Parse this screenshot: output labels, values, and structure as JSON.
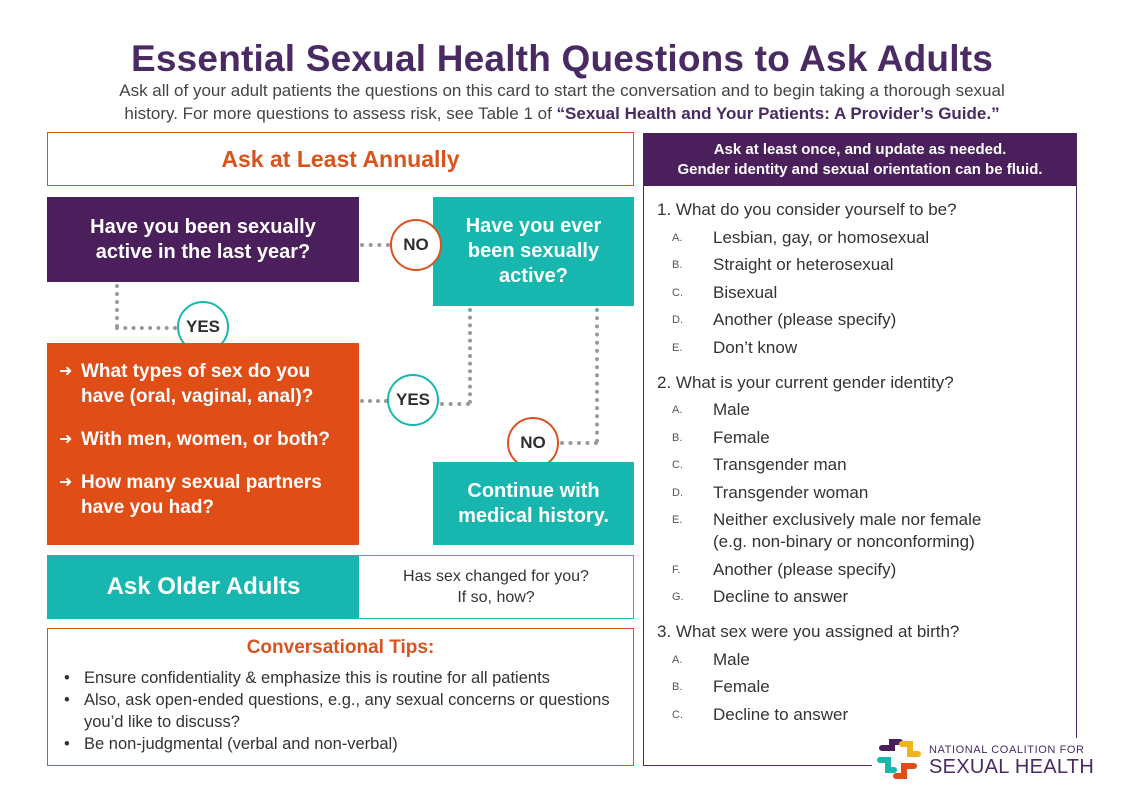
{
  "title": "Essential Sexual Health Questions to Ask Adults",
  "intro": {
    "line1": "Ask all of your adult patients the questions on this card to start the conversation and to begin taking a thorough sexual",
    "line2_prefix": "history. For more questions to assess risk, see Table 1 of ",
    "guide": "“Sexual Health and Your Patients: A Provider’s Guide.”"
  },
  "annual": {
    "header": "Ask at Least Annually",
    "q_active": "Have you been sexually active in the last year?",
    "q_ever": "Have you ever been sexually active?",
    "no_label": "NO",
    "yes_label": "YES",
    "questions": [
      "What types of sex do you have (oral, vaginal, anal)?",
      "With men, women, or both?",
      "How many sexual partners have you had?"
    ],
    "continue": "Continue with medical history."
  },
  "older": {
    "label": "Ask Older Adults",
    "q1": "Has sex changed for you?",
    "q2": "If so, how?"
  },
  "tips": {
    "title": "Conversational Tips:",
    "items": [
      "Ensure confidentiality & emphasize this is routine for all patients",
      "Also, ask open-ended questions, e.g., any sexual concerns or questions you’d like to discuss?",
      "Be non-judgmental (verbal and non-verbal)"
    ]
  },
  "identity": {
    "head1": "Ask at least once, and update as needed.",
    "head2": "Gender identity and sexual orientation can be fluid.",
    "q1": {
      "title": "1. What do you consider yourself to be?",
      "options": [
        {
          "ltr": "A.",
          "txt": "Lesbian, gay, or homosexual"
        },
        {
          "ltr": "B.",
          "txt": "Straight or heterosexual"
        },
        {
          "ltr": "C.",
          "txt": "Bisexual"
        },
        {
          "ltr": "D.",
          "txt": "Another (please specify)"
        },
        {
          "ltr": "E.",
          "txt": "Don’t know"
        }
      ]
    },
    "q2": {
      "title": "2. What is your current gender identity?",
      "options": [
        {
          "ltr": "A.",
          "txt": "Male"
        },
        {
          "ltr": "B.",
          "txt": "Female"
        },
        {
          "ltr": "C.",
          "txt": "Transgender man"
        },
        {
          "ltr": "D.",
          "txt": "Transgender woman"
        },
        {
          "ltr": "E.",
          "txt": "Neither exclusively male nor female",
          "txt2": "(e.g. non-binary or nonconforming)"
        },
        {
          "ltr": "F.",
          "txt": "Another (please specify)"
        },
        {
          "ltr": "G.",
          "txt": "Decline to answer"
        }
      ]
    },
    "q3": {
      "title": "3. What sex were you assigned at birth?",
      "options": [
        {
          "ltr": "A.",
          "txt": "Male"
        },
        {
          "ltr": "B.",
          "txt": "Female"
        },
        {
          "ltr": "C.",
          "txt": "Decline to answer"
        }
      ]
    }
  },
  "logo": {
    "small": "NATIONAL COALITION FOR",
    "big": "SEXUAL HEALTH"
  },
  "colors": {
    "purple": "#4a1f5c",
    "teal": "#17b7b0",
    "orange": "#e04d16"
  }
}
